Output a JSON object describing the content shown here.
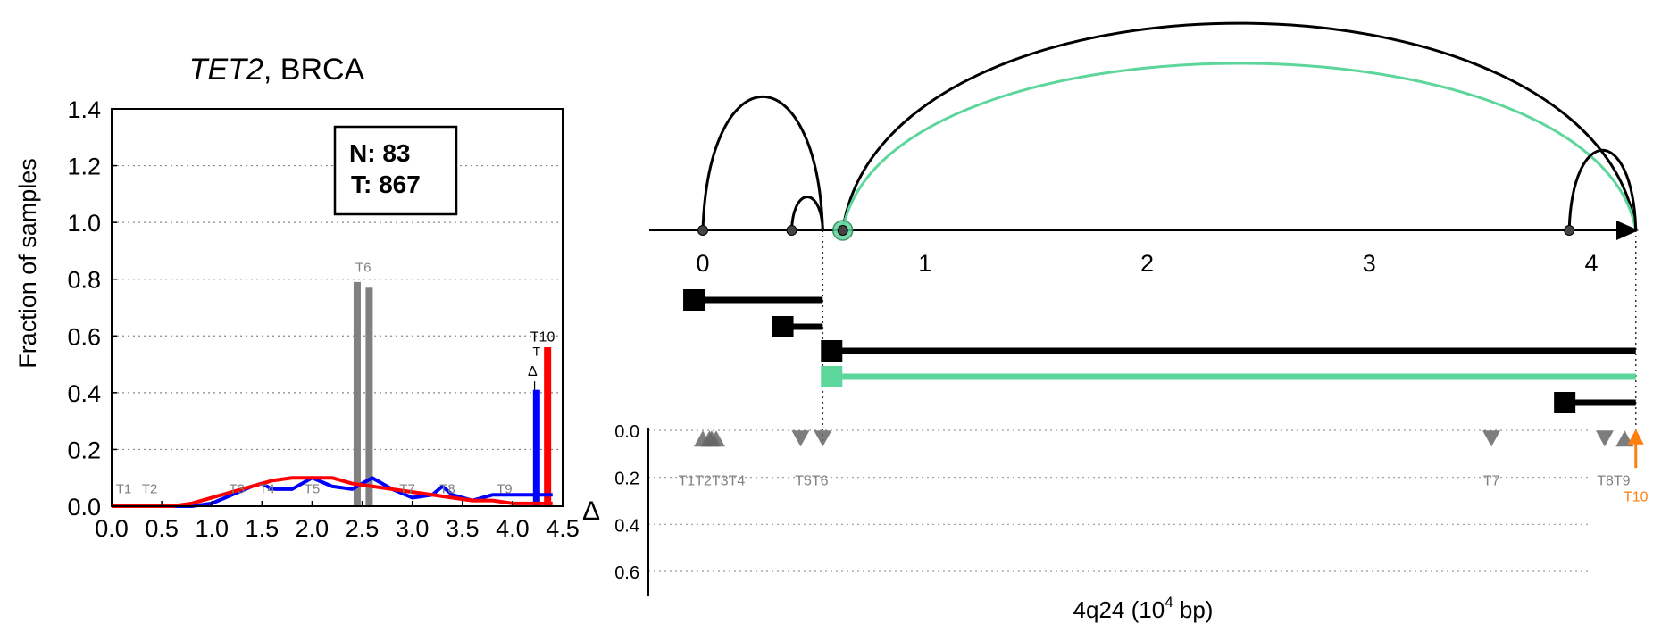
{
  "colors": {
    "normal": "#0000ff",
    "tumor": "#ff0000",
    "tss_bar": "#808080",
    "highlight": "#5cd69a",
    "tes_arrow": "#ff7f0e",
    "axis": "#000000",
    "marker": "#666666"
  },
  "chart_data": [
    {
      "type": "bar",
      "title_gene": "TET2",
      "title_rest": ", BRCA",
      "ylabel": "Fraction of samples",
      "xlabel": "",
      "xlim": [
        0,
        4.5
      ],
      "ylim": [
        0,
        1.4
      ],
      "xticks": [
        "0.0",
        "0.5",
        "1.0",
        "1.5",
        "2.0",
        "2.5",
        "3.0",
        "3.5",
        "4.0",
        "4.5"
      ],
      "yticks": [
        "0.0",
        "0.2",
        "0.4",
        "0.6",
        "0.8",
        "1.0",
        "1.2",
        "1.4"
      ],
      "grid": "horizontal dotted",
      "counts_box": {
        "normal": "N: 83",
        "tumor": "T: 867"
      },
      "series": [
        {
          "name": "N: 83",
          "color": "#0000ff",
          "x": [
            0.0,
            0.2,
            0.4,
            0.6,
            0.8,
            1.0,
            1.2,
            1.4,
            1.5,
            1.6,
            1.8,
            2.0,
            2.2,
            2.4,
            2.6,
            2.8,
            3.0,
            3.2,
            3.3,
            3.4,
            3.6,
            3.8,
            4.0,
            4.2,
            4.4
          ],
          "values": [
            0,
            0,
            0,
            0,
            0,
            0.01,
            0.04,
            0.07,
            0.08,
            0.06,
            0.06,
            0.1,
            0.07,
            0.06,
            0.1,
            0.06,
            0.03,
            0.04,
            0.07,
            0.04,
            0.02,
            0.04,
            0.04,
            0.04,
            0.04
          ]
        },
        {
          "name": "T: 867",
          "color": "#ff0000",
          "x": [
            0.0,
            0.2,
            0.4,
            0.6,
            0.8,
            1.0,
            1.2,
            1.4,
            1.6,
            1.8,
            2.0,
            2.2,
            2.4,
            2.6,
            2.8,
            3.0,
            3.2,
            3.4,
            3.6,
            3.8,
            4.0,
            4.2,
            4.4
          ],
          "values": [
            0,
            0,
            0,
            0,
            0.01,
            0.03,
            0.05,
            0.07,
            0.09,
            0.1,
            0.1,
            0.1,
            0.08,
            0.07,
            0.06,
            0.05,
            0.04,
            0.03,
            0.02,
            0.02,
            0.01,
            0.01,
            0.01
          ]
        }
      ],
      "tss_bars": [
        {
          "x": 2.45,
          "value": 0.79
        },
        {
          "x": 2.57,
          "value": 0.77
        }
      ],
      "tes_bars": [
        {
          "x": 4.24,
          "value": 0.41,
          "color": "#0000ff"
        },
        {
          "x": 4.35,
          "value": 0.56,
          "color": "#ff0000"
        }
      ],
      "transcript_labels": [
        {
          "label": "T1",
          "x": 0.12,
          "y": 0.04
        },
        {
          "label": "T2",
          "x": 0.38,
          "y": 0.04
        },
        {
          "label": "T3",
          "x": 1.25,
          "y": 0.04
        },
        {
          "label": "T4",
          "x": 1.55,
          "y": 0.04
        },
        {
          "label": "T5",
          "x": 2.0,
          "y": 0.04
        },
        {
          "label": "T6",
          "x": 2.51,
          "y": 0.82
        },
        {
          "label": "T7",
          "x": 2.95,
          "y": 0.04
        },
        {
          "label": "T8",
          "x": 3.35,
          "y": 0.04
        },
        {
          "label": "T9",
          "x": 3.92,
          "y": 0.04
        }
      ],
      "tes_label": "T10",
      "tes_label_sub1": "T",
      "tes_label_sub2": "Δ"
    },
    {
      "type": "scatter",
      "xlabel_main": "4q24 (10",
      "xlabel_sup": "4",
      "xlabel_tail": " bp)",
      "xlim": [
        -0.25,
        4.6
      ],
      "xticks": [
        "0",
        "1",
        "2",
        "3",
        "4"
      ],
      "delta_symbol": "Δ",
      "yticks": [
        "0.0",
        "0.2",
        "0.4",
        "0.6"
      ],
      "ylim": [
        0,
        0.7
      ],
      "grid": "horizontal dotted",
      "junction_nodes": [
        0.0,
        0.4,
        0.63,
        3.9
      ],
      "highlight_node": 0.63,
      "boundary_lines": [
        0.54,
        4.2
      ],
      "arcs": [
        {
          "from": 0.0,
          "to": 0.54,
          "height": 1.0,
          "color": "#000000"
        },
        {
          "from": 0.4,
          "to": 0.54,
          "height": 0.25,
          "color": "#000000"
        },
        {
          "from": 0.63,
          "to": 4.2,
          "height": 1.55,
          "color": "#000000"
        },
        {
          "from": 0.63,
          "to": 4.2,
          "height": 1.25,
          "color": "#5cd69a"
        },
        {
          "from": 3.9,
          "to": 4.2,
          "height": 0.6,
          "color": "#000000"
        }
      ],
      "isoform_tracks": [
        {
          "start": -0.04,
          "end": 0.54,
          "color": "#000000"
        },
        {
          "start": 0.36,
          "end": 0.54,
          "color": "#000000"
        },
        {
          "start": 0.58,
          "end": 4.2,
          "color": "#000000"
        },
        {
          "start": 0.58,
          "end": 4.2,
          "color": "#5cd69a"
        },
        {
          "start": 3.88,
          "end": 4.2,
          "color": "#000000"
        }
      ],
      "markers": [
        {
          "label": "T1",
          "x": 0.0,
          "dir": "up"
        },
        {
          "label": "T2",
          "x": 0.03,
          "dir": "up"
        },
        {
          "label": "T3",
          "x": 0.04,
          "dir": "up"
        },
        {
          "label": "T4",
          "x": 0.06,
          "dir": "up"
        },
        {
          "label": "T5",
          "x": 0.44,
          "dir": "down"
        },
        {
          "label": "T6",
          "x": 0.54,
          "dir": "down"
        },
        {
          "label": "T7",
          "x": 3.55,
          "dir": "down"
        },
        {
          "label": "T8",
          "x": 4.06,
          "dir": "down"
        },
        {
          "label": "T9",
          "x": 4.15,
          "dir": "up"
        }
      ],
      "marker_label_groups": [
        {
          "text": "T1T2T3T4",
          "x": 0.04
        },
        {
          "text": "T5T6",
          "x": 0.49
        },
        {
          "text": "T7",
          "x": 3.55
        },
        {
          "text": "T8T9",
          "x": 4.1
        }
      ],
      "tes_marker": {
        "label": "T10",
        "x": 4.2,
        "delta": 0.05
      }
    }
  ]
}
